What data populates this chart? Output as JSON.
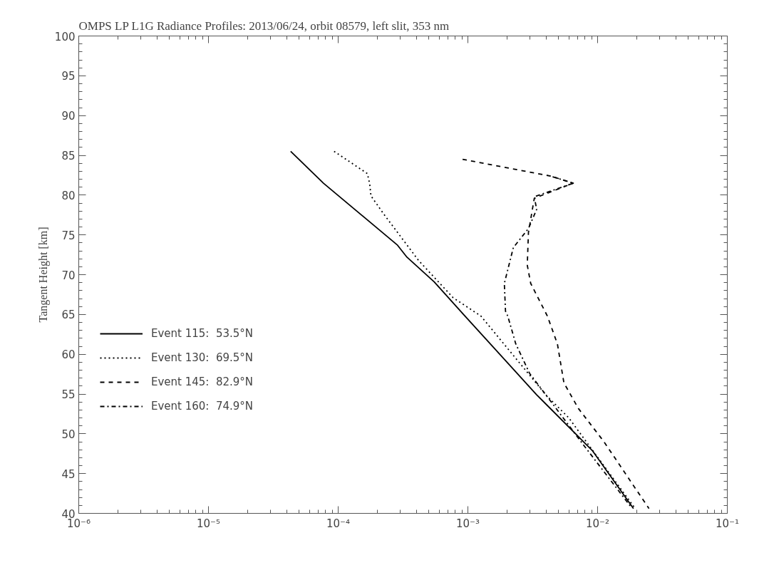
{
  "chart_data": {
    "type": "line",
    "title": "OMPS LP L1G Radiance Profiles: 2013/06/24, orbit 08579, left slit, 353 nm",
    "ylabel": "Tangent Height [km]",
    "log": "x",
    "grid": false,
    "legend": "left",
    "xlim": [
      1e-06,
      0.1
    ],
    "ylim": [
      40,
      100
    ],
    "xticks": [
      {
        "value": 1e-06,
        "label": "10⁻⁶"
      },
      {
        "value": 1e-05,
        "label": "10⁻⁵"
      },
      {
        "value": 0.0001,
        "label": "10⁻⁴"
      },
      {
        "value": 0.001,
        "label": "10⁻³"
      },
      {
        "value": 0.01,
        "label": "10⁻²"
      },
      {
        "value": 0.1,
        "label": "10⁻¹"
      }
    ],
    "yticks": [
      40,
      45,
      50,
      55,
      60,
      65,
      70,
      75,
      80,
      85,
      90,
      95,
      100
    ],
    "series": [
      {
        "name": "Event 115:  53.5°N",
        "color": "#000000",
        "line_style": "solid",
        "x": [
          4.3e-05,
          7.7e-05,
          0.000287,
          0.000339,
          0.00055,
          0.00095,
          0.00339,
          0.0091,
          0.0189
        ],
        "values": [
          85.5,
          81.5,
          73.7,
          72.2,
          69.1,
          64.8,
          54.9,
          47.9,
          40.6
        ]
      },
      {
        "name": "Event 130:  69.5°N",
        "color": "#000000",
        "line_style": "dotted",
        "x": [
          9.3e-05,
          0.000168,
          0.000175,
          0.000179,
          0.000225,
          0.000416,
          0.00077,
          0.00126,
          0.00399,
          0.006,
          0.0195
        ],
        "values": [
          85.5,
          82.7,
          81.4,
          79.9,
          77.6,
          71.8,
          67.1,
          64.8,
          54.9,
          52.0,
          40.6
        ]
      },
      {
        "name": "Event 145:  82.9°N",
        "color": "#000000",
        "line_style": "dashed",
        "x": [
          0.00091,
          0.00433,
          0.0065,
          0.00325,
          0.00293,
          0.00287,
          0.00305,
          0.0041,
          0.0049,
          0.0055,
          0.0071,
          0.0112,
          0.0249
        ],
        "values": [
          84.5,
          82.4,
          81.5,
          79.6,
          75.3,
          71.2,
          68.9,
          64.8,
          61.3,
          56.4,
          53.2,
          49.0,
          40.6
        ]
      },
      {
        "name": "Event 160:  74.9°N",
        "color": "#000000",
        "line_style": "dashdot",
        "x": [
          0.0045,
          0.0065,
          0.00325,
          0.00339,
          0.00293,
          0.00224,
          0.00191,
          0.00195,
          0.00203,
          0.00234,
          0.00299,
          0.00399,
          0.0077,
          0.0183
        ],
        "values": [
          82.3,
          81.5,
          79.8,
          78.2,
          75.8,
          73.4,
          68.9,
          65.4,
          64.8,
          61.3,
          57.6,
          54.9,
          48.7,
          40.7
        ]
      }
    ]
  }
}
